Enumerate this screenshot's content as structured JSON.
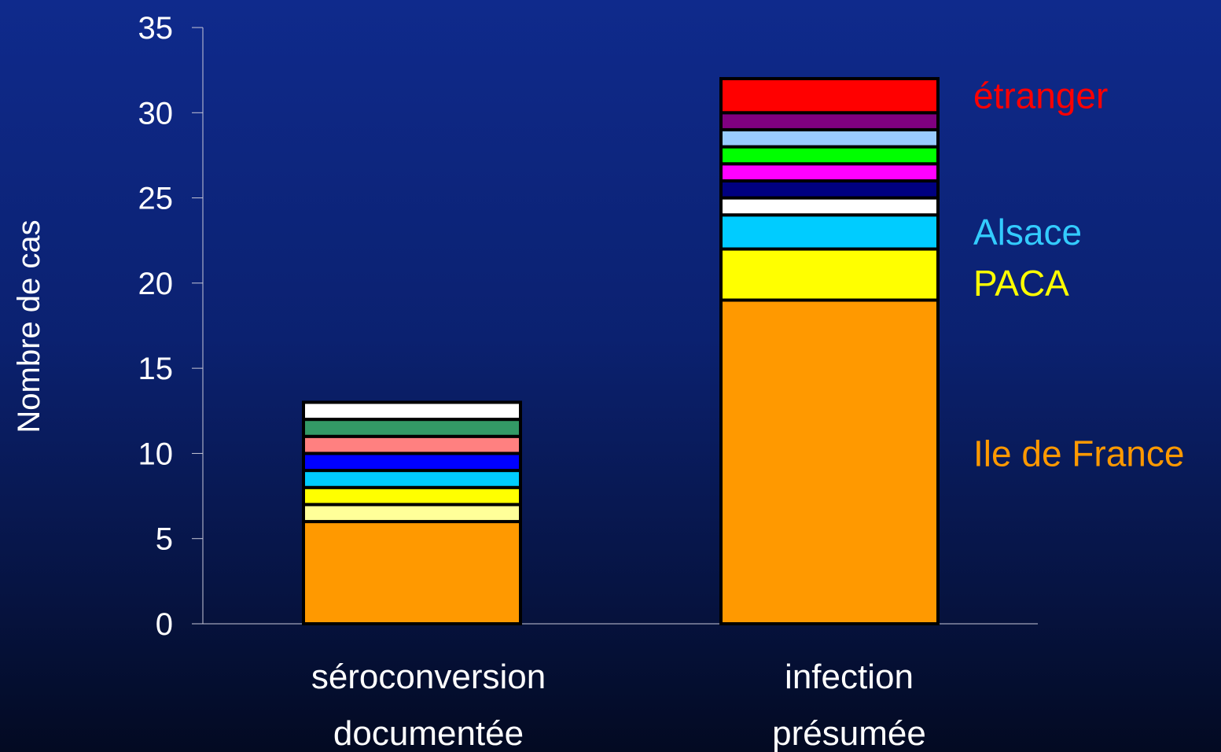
{
  "chart_data": {
    "type": "bar",
    "stacked": true,
    "title": "",
    "ylabel": "Nombre de cas",
    "xlabel": "",
    "ylim": [
      0,
      35
    ],
    "yticks": [
      0,
      5,
      10,
      15,
      20,
      25,
      30,
      35
    ],
    "grid": false,
    "categories": [
      [
        "séroconversion",
        "documentée"
      ],
      [
        "infection",
        "présumée"
      ]
    ],
    "bars": [
      {
        "segments": [
          {
            "value": 6,
            "color": "#FF9900"
          },
          {
            "value": 1,
            "color": "#FFFF99"
          },
          {
            "value": 1,
            "color": "#FFFF00"
          },
          {
            "value": 1,
            "color": "#00CCFF"
          },
          {
            "value": 1,
            "color": "#0000FF"
          },
          {
            "value": 1,
            "color": "#FF8080"
          },
          {
            "value": 1,
            "color": "#339966"
          },
          {
            "value": 1,
            "color": "#FFFFFF"
          }
        ]
      },
      {
        "segments": [
          {
            "value": 19,
            "color": "#FF9900"
          },
          {
            "value": 3,
            "color": "#FFFF00"
          },
          {
            "value": 2,
            "color": "#00CCFF"
          },
          {
            "value": 1,
            "color": "#FFFFFF"
          },
          {
            "value": 1,
            "color": "#000080"
          },
          {
            "value": 1,
            "color": "#FF00FF"
          },
          {
            "value": 1,
            "color": "#00FF00"
          },
          {
            "value": 1,
            "color": "#99CCFF"
          },
          {
            "value": 1,
            "color": "#800080"
          },
          {
            "value": 2,
            "color": "#FF0000"
          }
        ]
      }
    ],
    "annotations": [
      {
        "text": "étranger",
        "y": 31,
        "color": "#FF0000"
      },
      {
        "text": "Alsace",
        "y": 23,
        "color": "#33CCFF"
      },
      {
        "text": "PACA",
        "y": 20,
        "color": "#FFFF00"
      },
      {
        "text": "Ile de France",
        "y": 10,
        "color": "#FF9900"
      }
    ]
  }
}
